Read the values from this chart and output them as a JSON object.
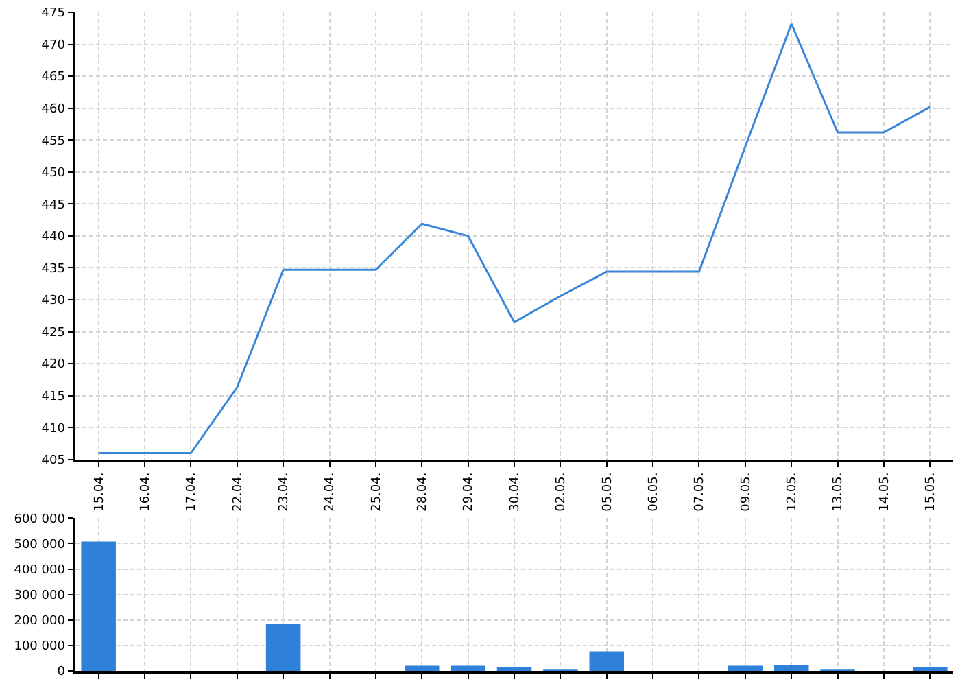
{
  "chart_data": [
    {
      "type": "line",
      "categories": [
        "15.04.",
        "16.04.",
        "17.04.",
        "22.04.",
        "23.04.",
        "24.04.",
        "25.04.",
        "28.04.",
        "29.04.",
        "30.04.",
        "02.05.",
        "05.05.",
        "06.05.",
        "07.05.",
        "09.05.",
        "12.05.",
        "13.05.",
        "14.05.",
        "15.05."
      ],
      "series": [
        {
          "color": "#3a86d8",
          "values": [
            406,
            406,
            406,
            416.3,
            434.7,
            434.7,
            434.7,
            441.9,
            440,
            426.5,
            430.6,
            434.4,
            434.4,
            434.4,
            454,
            473.2,
            456.2,
            456.2,
            460.2
          ]
        }
      ],
      "ylim": [
        405,
        475
      ],
      "yticks": [
        405,
        410,
        415,
        420,
        425,
        430,
        435,
        440,
        445,
        450,
        455,
        460,
        465,
        470,
        475
      ],
      "grid": true,
      "marker": "none",
      "line_style": "solid"
    },
    {
      "type": "bar",
      "categories": [
        "15.04.",
        "16.04.",
        "17.04.",
        "22.04.",
        "23.04.",
        "24.04.",
        "25.04.",
        "28.04.",
        "29.04.",
        "30.04.",
        "02.05.",
        "05.05.",
        "06.05.",
        "07.05.",
        "09.05.",
        "12.05.",
        "13.05.",
        "14.05.",
        "15.05."
      ],
      "series": [
        {
          "color": "#2f80d8",
          "values": [
            508000,
            0,
            0,
            0,
            186000,
            0,
            0,
            20000,
            20000,
            15000,
            3000,
            77000,
            0,
            0,
            20000,
            22000,
            5000,
            0,
            15000
          ]
        }
      ],
      "ylim": [
        0,
        600000
      ],
      "yticks": [
        {
          "value": 0,
          "label": "0"
        },
        {
          "value": 100000,
          "label": "100 000"
        },
        {
          "value": 200000,
          "label": "200 000"
        },
        {
          "value": 300000,
          "label": "300 000"
        },
        {
          "value": 400000,
          "label": "400 000"
        },
        {
          "value": 500000,
          "label": "500 000"
        },
        {
          "value": 600000,
          "label": "600 000"
        }
      ],
      "grid": true,
      "tick_labels": "y"
    }
  ]
}
